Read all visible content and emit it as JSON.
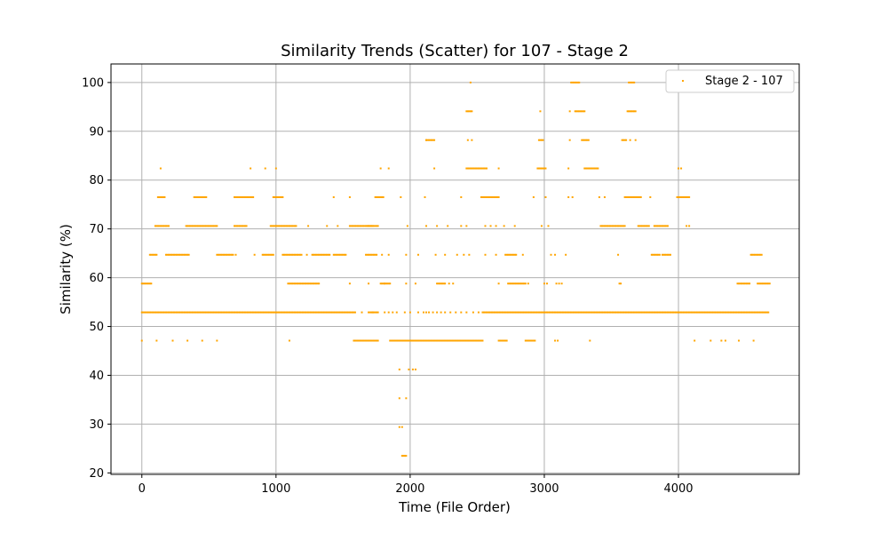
{
  "chart_data": {
    "type": "scatter",
    "title": "Similarity Trends (Scatter) for 107 - Stage 2",
    "xlabel": "Time (File Order)",
    "ylabel": "Similarity (%)",
    "xlim": [
      -230,
      4900
    ],
    "ylim": [
      19.7,
      103.8
    ],
    "xticks": [
      0,
      1000,
      2000,
      3000,
      4000
    ],
    "yticks": [
      20,
      30,
      40,
      50,
      60,
      70,
      80,
      90,
      100
    ],
    "grid": true,
    "legend_position": "top-right",
    "series": [
      {
        "name": "Stage 2 - 107",
        "color": "#FFA500",
        "segments": [
          {
            "y": 52.9,
            "ranges": [
              [
                0,
                1590
              ],
              [
                1690,
                1760
              ],
              [
                2540,
                4670
              ]
            ]
          },
          {
            "y": 47.1,
            "ranges": [
              [
                1580,
                1760
              ],
              [
                1850,
                2540
              ],
              [
                2660,
                2720
              ],
              [
                2860,
                2930
              ]
            ]
          },
          {
            "y": 58.8,
            "ranges": [
              [
                0,
                70
              ],
              [
                1090,
                1320
              ],
              [
                1780,
                1850
              ],
              [
                2200,
                2260
              ],
              [
                2730,
                2860
              ],
              [
                4440,
                4530
              ],
              [
                4590,
                4680
              ]
            ]
          },
          {
            "y": 64.7,
            "ranges": [
              [
                60,
                110
              ],
              [
                180,
                350
              ],
              [
                560,
                680
              ],
              [
                900,
                980
              ],
              [
                1050,
                1190
              ],
              [
                1270,
                1400
              ],
              [
                1430,
                1520
              ],
              [
                1670,
                1750
              ],
              [
                2710,
                2790
              ],
              [
                3800,
                3860
              ],
              [
                3880,
                3940
              ],
              [
                4540,
                4620
              ]
            ]
          },
          {
            "y": 70.6,
            "ranges": [
              [
                100,
                200
              ],
              [
                330,
                560
              ],
              [
                690,
                780
              ],
              [
                960,
                1150
              ],
              [
                1550,
                1720
              ],
              [
                1680,
                1760
              ],
              [
                3420,
                3600
              ],
              [
                3700,
                3780
              ],
              [
                3820,
                3920
              ]
            ]
          },
          {
            "y": 76.5,
            "ranges": [
              [
                120,
                170
              ],
              [
                390,
                480
              ],
              [
                690,
                830
              ],
              [
                980,
                1050
              ],
              [
                1740,
                1800
              ],
              [
                2530,
                2660
              ],
              [
                3600,
                3720
              ],
              [
                3990,
                4080
              ]
            ]
          },
          {
            "y": 82.4,
            "ranges": [
              [
                2420,
                2570
              ],
              [
                2950,
                3010
              ],
              [
                3300,
                3400
              ]
            ]
          },
          {
            "y": 88.2,
            "ranges": [
              [
                2120,
                2180
              ],
              [
                2960,
                2990
              ],
              [
                3280,
                3330
              ],
              [
                3580,
                3610
              ]
            ]
          },
          {
            "y": 94.1,
            "ranges": [
              [
                2420,
                2460
              ],
              [
                3230,
                3300
              ],
              [
                3620,
                3680
              ]
            ]
          },
          {
            "y": 100,
            "ranges": [
              [
                3200,
                3260
              ],
              [
                3630,
                3670
              ]
            ]
          }
        ],
        "points": [
          [
            0,
            47.1
          ],
          [
            110,
            47.1
          ],
          [
            230,
            47.1
          ],
          [
            340,
            47.1
          ],
          [
            450,
            47.1
          ],
          [
            560,
            47.1
          ],
          [
            1100,
            47.1
          ],
          [
            4120,
            47.1
          ],
          [
            4240,
            47.1
          ],
          [
            4320,
            47.1
          ],
          [
            4350,
            47.1
          ],
          [
            4450,
            47.1
          ],
          [
            4560,
            47.1
          ],
          [
            3080,
            47.1
          ],
          [
            3100,
            47.1
          ],
          [
            3340,
            47.1
          ],
          [
            1920,
            41.2
          ],
          [
            1990,
            41.2
          ],
          [
            2020,
            41.2
          ],
          [
            2040,
            41.2
          ],
          [
            1920,
            35.3
          ],
          [
            1970,
            35.3
          ],
          [
            1920,
            29.4
          ],
          [
            1940,
            29.4
          ],
          [
            1940,
            23.5
          ],
          [
            1950,
            23.5
          ],
          [
            1960,
            23.5
          ],
          [
            1970,
            23.5
          ],
          [
            2100,
            52.9
          ],
          [
            2120,
            52.9
          ],
          [
            2140,
            52.9
          ],
          [
            2170,
            52.9
          ],
          [
            2200,
            52.9
          ],
          [
            2230,
            52.9
          ],
          [
            2260,
            52.9
          ],
          [
            2300,
            52.9
          ],
          [
            2340,
            52.9
          ],
          [
            2380,
            52.9
          ],
          [
            2420,
            52.9
          ],
          [
            2470,
            52.9
          ],
          [
            2510,
            52.9
          ],
          [
            1970,
            64.7
          ],
          [
            2060,
            64.7
          ],
          [
            2190,
            64.7
          ],
          [
            2260,
            64.7
          ],
          [
            2350,
            64.7
          ],
          [
            2400,
            64.7
          ],
          [
            2440,
            64.7
          ],
          [
            2560,
            64.7
          ],
          [
            2640,
            64.7
          ],
          [
            2840,
            64.7
          ],
          [
            3050,
            64.7
          ],
          [
            3080,
            64.7
          ],
          [
            3160,
            64.7
          ],
          [
            3550,
            64.7
          ],
          [
            1970,
            58.8
          ],
          [
            2040,
            58.8
          ],
          [
            2290,
            58.8
          ],
          [
            2320,
            58.8
          ],
          [
            2660,
            58.8
          ],
          [
            2880,
            58.8
          ],
          [
            3000,
            58.8
          ],
          [
            3020,
            58.8
          ],
          [
            3090,
            58.8
          ],
          [
            3110,
            58.8
          ],
          [
            3130,
            58.8
          ],
          [
            3560,
            58.8
          ],
          [
            3570,
            58.8
          ],
          [
            1980,
            70.6
          ],
          [
            2120,
            70.6
          ],
          [
            2200,
            70.6
          ],
          [
            2280,
            70.6
          ],
          [
            2380,
            70.6
          ],
          [
            2420,
            70.6
          ],
          [
            2560,
            70.6
          ],
          [
            2600,
            70.6
          ],
          [
            2640,
            70.6
          ],
          [
            2700,
            70.6
          ],
          [
            2780,
            70.6
          ],
          [
            2980,
            70.6
          ],
          [
            3030,
            70.6
          ],
          [
            4060,
            70.6
          ],
          [
            4080,
            70.6
          ],
          [
            1460,
            70.6
          ],
          [
            1380,
            70.6
          ],
          [
            1240,
            70.6
          ],
          [
            1430,
            76.5
          ],
          [
            1550,
            76.5
          ],
          [
            1930,
            76.5
          ],
          [
            2110,
            76.5
          ],
          [
            2380,
            76.5
          ],
          [
            2920,
            76.5
          ],
          [
            3010,
            76.5
          ],
          [
            3180,
            76.5
          ],
          [
            3210,
            76.5
          ],
          [
            3450,
            76.5
          ],
          [
            3790,
            76.5
          ],
          [
            3410,
            76.5
          ],
          [
            140,
            82.4
          ],
          [
            810,
            82.4
          ],
          [
            920,
            82.4
          ],
          [
            1000,
            82.4
          ],
          [
            1780,
            82.4
          ],
          [
            1840,
            82.4
          ],
          [
            2180,
            82.4
          ],
          [
            2660,
            82.4
          ],
          [
            3180,
            82.4
          ],
          [
            4000,
            82.4
          ],
          [
            4020,
            82.4
          ],
          [
            2430,
            88.2
          ],
          [
            2460,
            88.2
          ],
          [
            2120,
            88.2
          ],
          [
            3190,
            88.2
          ],
          [
            3640,
            88.2
          ],
          [
            3680,
            88.2
          ],
          [
            2970,
            94.1
          ],
          [
            3190,
            94.1
          ],
          [
            2450,
            100
          ],
          [
            1790,
            64.7
          ],
          [
            1840,
            64.7
          ],
          [
            840,
            64.7
          ],
          [
            700,
            64.7
          ],
          [
            1230,
            64.7
          ],
          [
            1720,
            52.9
          ],
          [
            1810,
            52.9
          ],
          [
            1840,
            52.9
          ],
          [
            1870,
            52.9
          ],
          [
            1900,
            52.9
          ],
          [
            1960,
            52.9
          ],
          [
            2000,
            52.9
          ],
          [
            2060,
            52.9
          ],
          [
            1640,
            52.9
          ],
          [
            1690,
            58.8
          ],
          [
            1810,
            58.8
          ],
          [
            1550,
            58.8
          ]
        ]
      }
    ]
  }
}
